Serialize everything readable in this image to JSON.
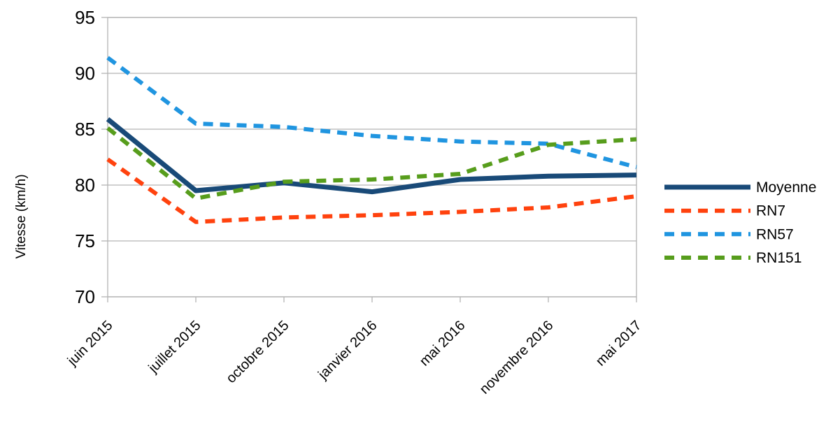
{
  "chart_data": {
    "type": "line",
    "title": "",
    "ylabel": "Vitesse (km/h)",
    "xlabel": "",
    "ylim": [
      70,
      95
    ],
    "yticks": [
      95,
      90,
      85,
      80,
      75,
      70
    ],
    "grid": "horizontal",
    "legend_position": "right",
    "background": "#ffffff",
    "axis_color": "#b3b3b3",
    "text_color": "#000000",
    "categories": [
      "juin 2015",
      "juillet 2015",
      "octobre 2015",
      "janvier 2016",
      "mai 2016",
      "novembre 2016",
      "mai 2017"
    ],
    "series": [
      {
        "name": "Moyenne",
        "style": "solid",
        "color": "#194a78",
        "values": [
          85.9,
          79.5,
          80.2,
          79.4,
          80.5,
          80.8,
          80.9
        ]
      },
      {
        "name": "RN7",
        "style": "dashed",
        "color": "#ff420e",
        "values": [
          82.3,
          76.7,
          77.1,
          77.3,
          77.6,
          78.0,
          79.0
        ]
      },
      {
        "name": "RN57",
        "style": "dashed",
        "color": "#2095e0",
        "values": [
          91.4,
          85.5,
          85.2,
          84.4,
          83.9,
          83.7,
          81.6
        ]
      },
      {
        "name": "RN151",
        "style": "dashed",
        "color": "#579d1c",
        "values": [
          85.1,
          78.8,
          80.3,
          80.5,
          81.0,
          83.6,
          84.1
        ]
      }
    ]
  }
}
